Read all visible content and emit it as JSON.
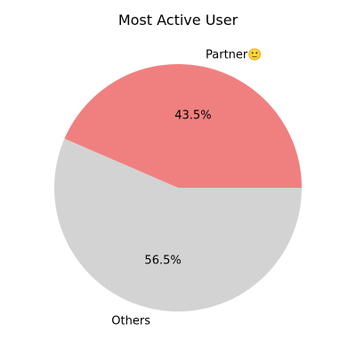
{
  "chart_data": {
    "type": "pie",
    "title": "Most Active User",
    "slices": [
      {
        "label": "Partner🙂",
        "value": 43.5,
        "pct_label": "43.5%",
        "color": "#f08080"
      },
      {
        "label": "Others",
        "value": 56.5,
        "pct_label": "56.5%",
        "color": "#d3d3d3"
      }
    ],
    "start_angle_deg": 0,
    "direction": "counterclockwise"
  }
}
